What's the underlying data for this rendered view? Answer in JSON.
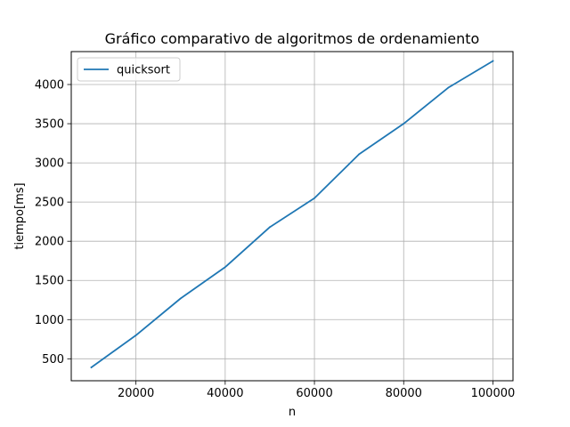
{
  "chart_data": {
    "type": "line",
    "title": "Gráfico comparativo de algoritmos de ordenamiento",
    "xlabel": "n",
    "ylabel": "tiempo[ms]",
    "xlim": [
      5500,
      104500
    ],
    "ylim": [
      220,
      4420
    ],
    "xticks": [
      20000,
      40000,
      60000,
      80000,
      100000
    ],
    "yticks": [
      500,
      1000,
      1500,
      2000,
      2500,
      3000,
      3500,
      4000
    ],
    "grid": true,
    "legend_position": "top-left",
    "series": [
      {
        "name": "quicksort",
        "color": "#1f77b4",
        "x": [
          10000,
          20000,
          30000,
          40000,
          50000,
          60000,
          70000,
          80000,
          90000,
          100000
        ],
        "y": [
          390,
          800,
          1270,
          1670,
          2180,
          2550,
          3110,
          3500,
          3960,
          4300
        ]
      }
    ]
  }
}
